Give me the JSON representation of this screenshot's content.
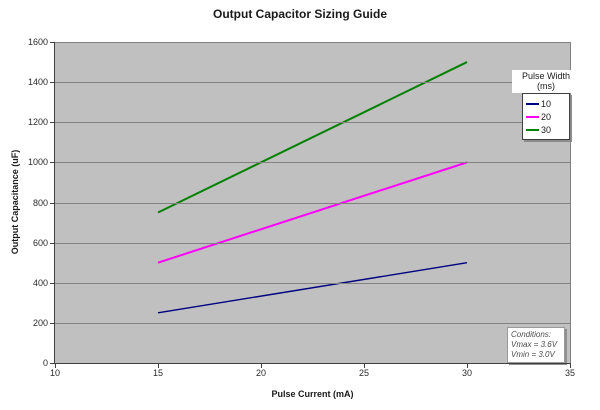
{
  "chart_data": {
    "type": "line",
    "title": "Output Capacitor Sizing Guide",
    "xlabel": "Pulse Current (mA)",
    "ylabel": "Output Capacitance (uF)",
    "xlim": [
      10,
      35
    ],
    "ylim": [
      0,
      1600
    ],
    "x_ticks": [
      10,
      15,
      20,
      25,
      30,
      35
    ],
    "y_ticks": [
      0,
      200,
      400,
      600,
      800,
      1000,
      1200,
      1400,
      1600
    ],
    "grid": "horizontal",
    "plot_bg": "#c0c0c0",
    "gridline_color": "#828282",
    "legend_position": "top-right",
    "legend_title_lines": [
      "Pulse Width",
      "(ms)"
    ],
    "series": [
      {
        "name": "10",
        "color": "#000080",
        "x": [
          15,
          30
        ],
        "y": [
          250,
          500
        ]
      },
      {
        "name": "20",
        "color": "#ff00ff",
        "x": [
          15,
          30
        ],
        "y": [
          500,
          1000
        ]
      },
      {
        "name": "30",
        "color": "#008000",
        "x": [
          15,
          30
        ],
        "y": [
          750,
          1500
        ]
      }
    ],
    "annotation": {
      "lines": [
        "Conditions:",
        "Vmax = 3.6V",
        "Vmin = 3.0V"
      ]
    }
  }
}
